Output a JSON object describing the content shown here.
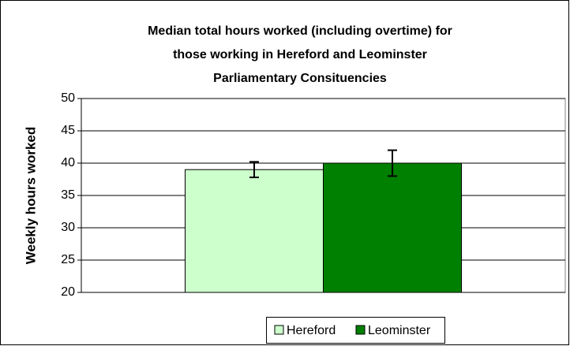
{
  "chart_data": {
    "type": "bar",
    "title": [
      "Median total hours worked (including overtime) for",
      "those working in Hereford and Leominster",
      "Parliamentary Consituencies"
    ],
    "y_label": "Weekly hours worked",
    "categories": [
      null
    ],
    "series": [
      {
        "name": "Hereford",
        "color": "#ccffcc",
        "values": [
          39
        ],
        "errors": [
          1.2
        ]
      },
      {
        "name": "Leominster",
        "color": "#008000",
        "values": [
          40
        ],
        "errors": [
          2
        ]
      }
    ],
    "ylim": [
      20,
      50
    ],
    "yticks": [
      20,
      25,
      30,
      35,
      40,
      45,
      50
    ],
    "grid": true,
    "legend": "bottom"
  }
}
